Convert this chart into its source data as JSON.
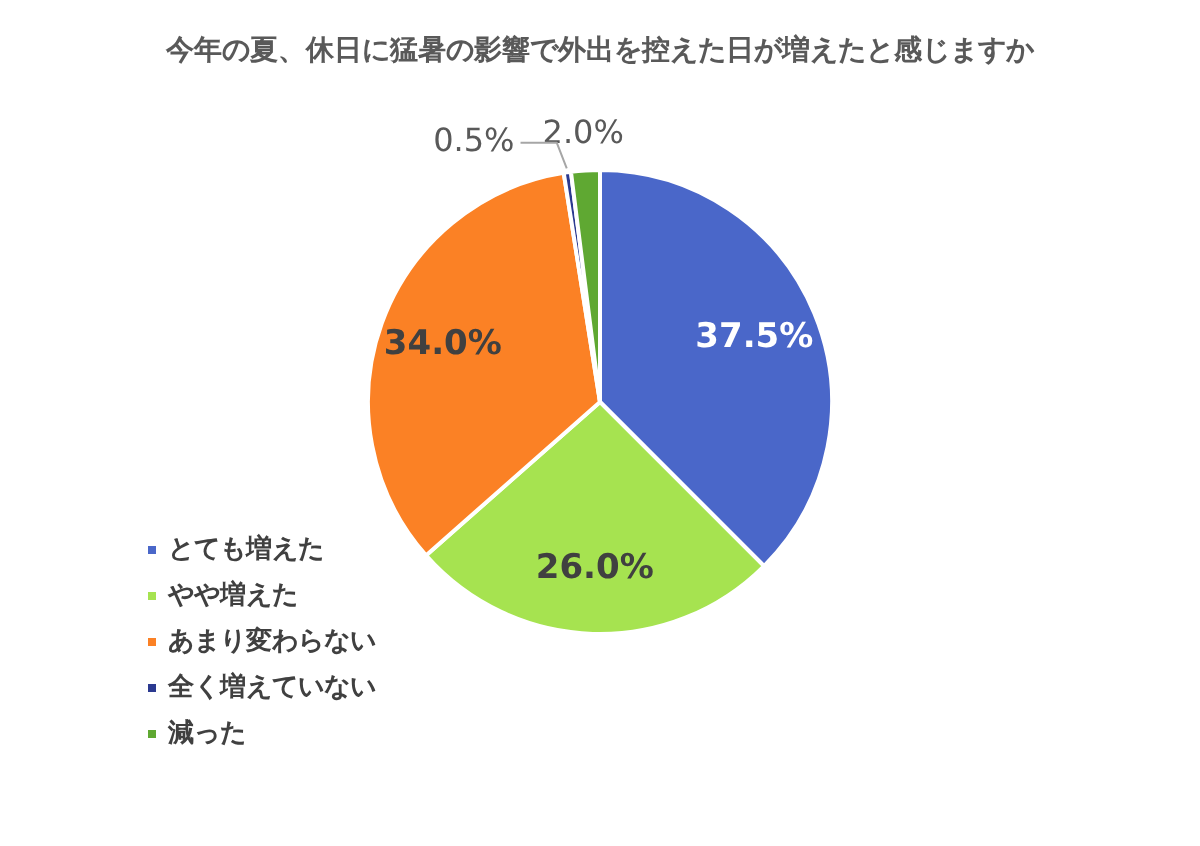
{
  "chart_data": {
    "type": "pie",
    "title": "今年の夏、休日に猛暑の影響で外出を控えた日が増えたと感じますか",
    "categories": [
      "とても増えた",
      "やや増えた",
      "あまり変わらない",
      "全く増えていない",
      "減った"
    ],
    "values": [
      37.5,
      26.0,
      34.0,
      0.5,
      2.0
    ],
    "colors": [
      "#4a67c9",
      "#a6e350",
      "#fb8125",
      "#2b3990",
      "#5fa832"
    ],
    "value_labels": [
      "37.5%",
      "26.0%",
      "34.0%",
      "0.5%",
      "2.0%"
    ],
    "legend": "bottom left"
  }
}
